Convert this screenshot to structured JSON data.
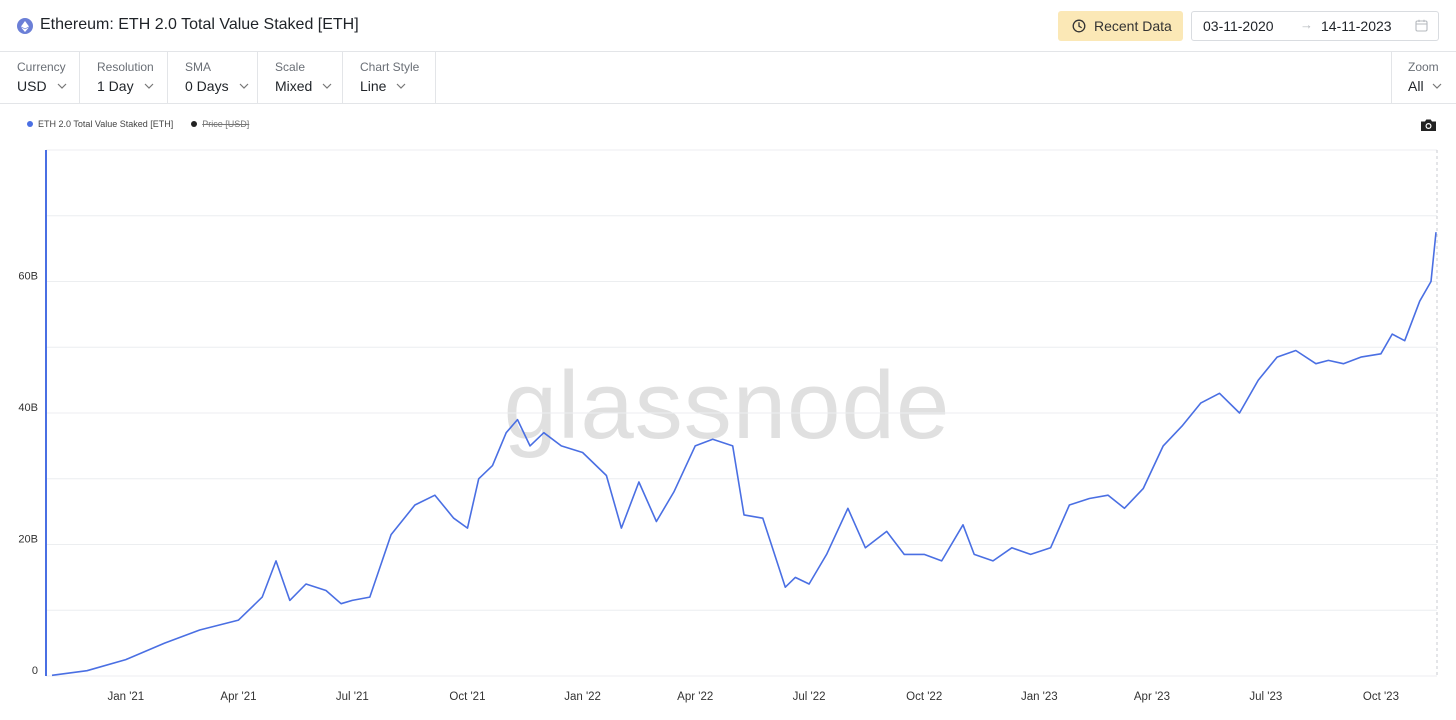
{
  "header": {
    "title": "Ethereum: ETH 2.0 Total Value Staked [ETH]",
    "recent_label": "Recent Data",
    "date_from": "03-11-2020",
    "date_arrow": "→",
    "date_to": "14-11-2023"
  },
  "controls": {
    "currency": {
      "label": "Currency",
      "value": "USD"
    },
    "resolution": {
      "label": "Resolution",
      "value": "1 Day"
    },
    "sma": {
      "label": "SMA",
      "value": "0 Days"
    },
    "scale": {
      "label": "Scale",
      "value": "Mixed"
    },
    "style": {
      "label": "Chart Style",
      "value": "Line"
    },
    "zoom": {
      "label": "Zoom",
      "value": "All"
    }
  },
  "legend": {
    "series_label": "ETH 2.0 Total Value Staked [ETH]",
    "price_label": "Price [USD]"
  },
  "watermark": "glassnode",
  "colors": {
    "series": "#4a6fe3",
    "accent_bg": "#fbe8b6",
    "price_legend": "#222222"
  },
  "icons": {
    "coin": "ethereum-icon",
    "recent": "clock-icon",
    "calendar": "calendar-icon",
    "export": "camera-icon",
    "dropdown": "chevron-down-icon"
  },
  "chart_data": {
    "type": "line",
    "title": "Ethereum: ETH 2.0 Total Value Staked [ETH]",
    "ylim": [
      0,
      80
    ],
    "y_unit": "B",
    "y_ticks": [
      "0",
      "20B",
      "40B",
      "60B"
    ],
    "x_ticks": [
      "Jan '21",
      "Apr '21",
      "Jul '21",
      "Oct '21",
      "Jan '22",
      "Apr '22",
      "Jul '22",
      "Oct '22",
      "Jan '23",
      "Apr '23",
      "Jul '23",
      "Oct '23"
    ],
    "series": [
      {
        "name": "ETH 2.0 Total Value Staked [ETH]",
        "x": [
          "2020-11-03",
          "2020-12-01",
          "2021-01-01",
          "2021-02-01",
          "2021-03-01",
          "2021-04-01",
          "2021-04-20",
          "2021-05-01",
          "2021-05-12",
          "2021-05-25",
          "2021-06-10",
          "2021-06-22",
          "2021-07-01",
          "2021-07-15",
          "2021-08-01",
          "2021-08-20",
          "2021-09-05",
          "2021-09-20",
          "2021-10-01",
          "2021-10-10",
          "2021-10-21",
          "2021-11-01",
          "2021-11-10",
          "2021-11-20",
          "2021-12-01",
          "2021-12-15",
          "2022-01-01",
          "2022-01-20",
          "2022-02-01",
          "2022-02-15",
          "2022-03-01",
          "2022-03-15",
          "2022-04-01",
          "2022-04-15",
          "2022-05-01",
          "2022-05-10",
          "2022-05-25",
          "2022-06-12",
          "2022-06-20",
          "2022-07-01",
          "2022-07-15",
          "2022-08-01",
          "2022-08-15",
          "2022-09-01",
          "2022-09-15",
          "2022-10-01",
          "2022-10-15",
          "2022-11-01",
          "2022-11-10",
          "2022-11-25",
          "2022-12-10",
          "2022-12-25",
          "2023-01-10",
          "2023-01-25",
          "2023-02-10",
          "2023-02-25",
          "2023-03-10",
          "2023-03-25",
          "2023-04-10",
          "2023-04-25",
          "2023-05-10",
          "2023-05-25",
          "2023-06-10",
          "2023-06-25",
          "2023-07-10",
          "2023-07-25",
          "2023-08-10",
          "2023-08-20",
          "2023-09-01",
          "2023-09-15",
          "2023-10-01",
          "2023-10-10",
          "2023-10-20",
          "2023-11-01",
          "2023-11-10",
          "2023-11-14"
        ],
        "values": [
          0.1,
          0.8,
          2.5,
          5.0,
          7.0,
          8.5,
          12.0,
          17.5,
          11.5,
          14.0,
          13.0,
          11.0,
          11.5,
          12.0,
          21.5,
          26.0,
          27.5,
          24.0,
          22.5,
          30.0,
          32.0,
          37.0,
          39.0,
          35.0,
          37.0,
          35.0,
          34.0,
          30.5,
          22.5,
          29.5,
          23.5,
          28.0,
          35.0,
          36.0,
          35.0,
          24.5,
          24.0,
          13.5,
          15.0,
          14.0,
          18.5,
          25.5,
          19.5,
          22.0,
          18.5,
          18.5,
          17.5,
          23.0,
          18.5,
          17.5,
          19.5,
          18.5,
          19.5,
          26.0,
          27.0,
          27.5,
          25.5,
          28.5,
          35.0,
          38.0,
          41.5,
          43.0,
          40.0,
          45.0,
          48.5,
          49.5,
          47.5,
          48.0,
          47.5,
          48.5,
          49.0,
          52.0,
          51.0,
          57.0,
          60.0,
          67.5
        ]
      }
    ],
    "grid": true,
    "legend_position": "top-left"
  }
}
